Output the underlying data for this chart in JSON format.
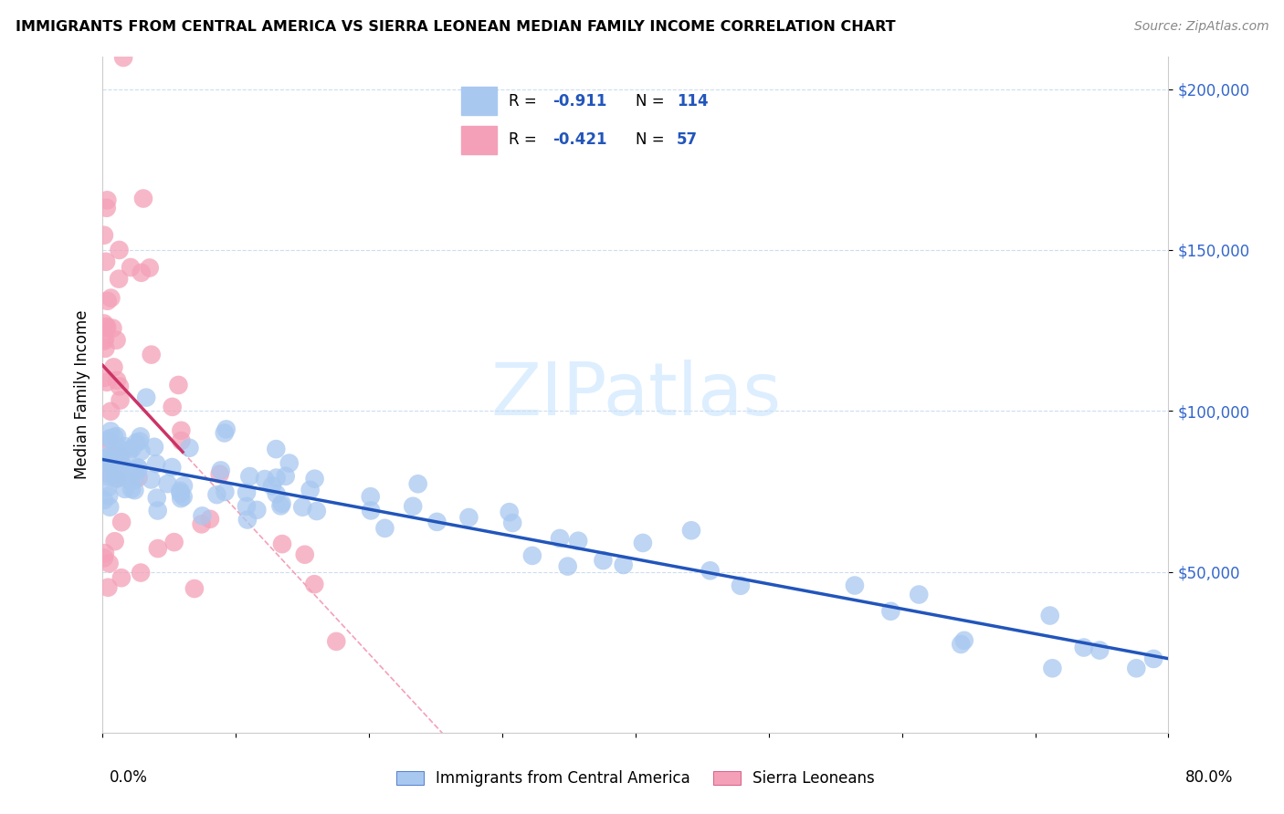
{
  "title": "IMMIGRANTS FROM CENTRAL AMERICA VS SIERRA LEONEAN MEDIAN FAMILY INCOME CORRELATION CHART",
  "source": "Source: ZipAtlas.com",
  "ylabel": "Median Family Income",
  "blue_R": "-0.911",
  "blue_N": "114",
  "pink_R": "-0.421",
  "pink_N": "57",
  "blue_color": "#A8C8F0",
  "pink_color": "#F4A0B8",
  "blue_line_color": "#2255BB",
  "pink_line_color": "#CC3366",
  "pink_dash_color": "#F4A0B8",
  "watermark_color": "#DDEEFF",
  "legend_label_blue": "Immigrants from Central America",
  "legend_label_pink": "Sierra Leoneans",
  "ytick_color": "#3366CC",
  "xmin": 0.0,
  "xmax": 0.8,
  "ymin": 0,
  "ymax": 210000
}
